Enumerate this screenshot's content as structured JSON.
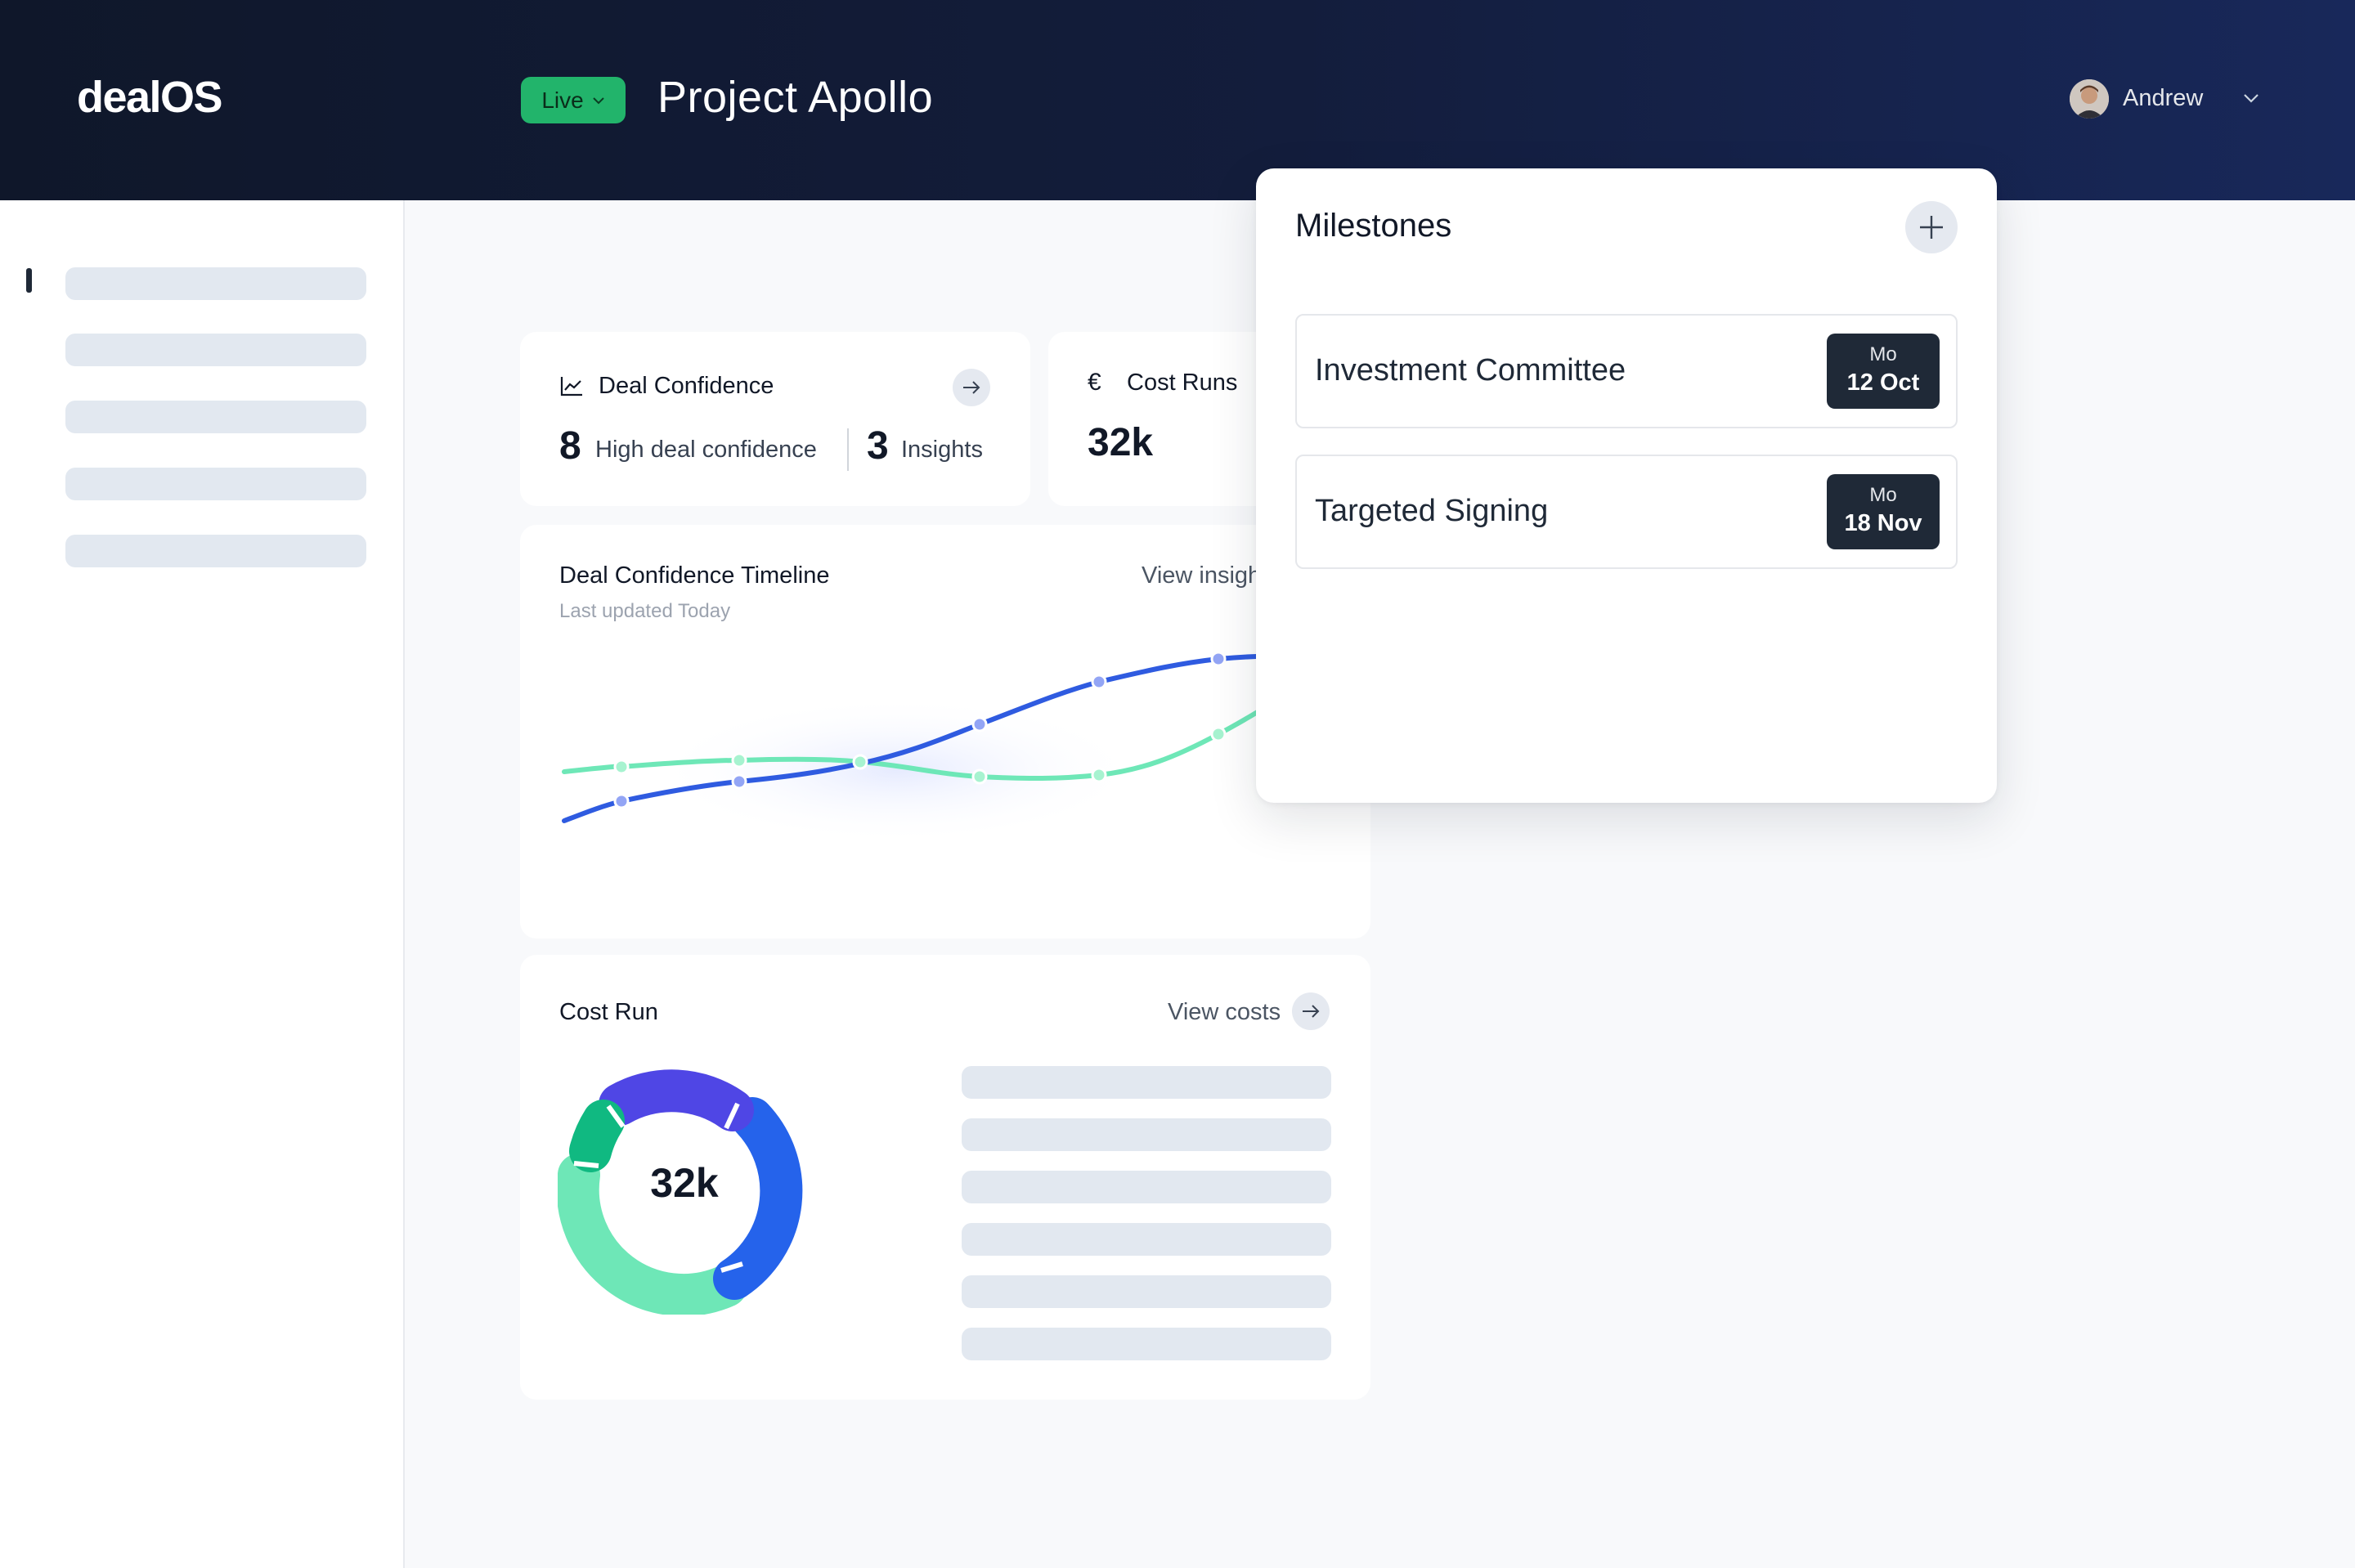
{
  "header": {
    "logo": "dealOS",
    "status_pill": "Live",
    "project_title": "Project Apollo",
    "user_name": "Andrew"
  },
  "deal_confidence": {
    "title": "Deal Confidence",
    "high_count": "8",
    "high_label": "High deal confidence",
    "insights_count": "3",
    "insights_label": "Insights"
  },
  "cost_runs": {
    "currency_symbol": "€",
    "title": "Cost Runs",
    "value": "32k"
  },
  "timeline": {
    "title": "Deal Confidence Timeline",
    "subtitle": "Last updated Today",
    "view_link": "View insights"
  },
  "cost_run": {
    "title": "Cost Run",
    "view_link": "View costs",
    "total": "32k"
  },
  "milestones": {
    "title": "Milestones",
    "items": [
      {
        "name": "Investment Committee",
        "day": "Mo",
        "date": "12 Oct"
      },
      {
        "name": "Targeted Signing",
        "day": "Mo",
        "date": "18 Nov"
      }
    ]
  },
  "colors": {
    "header_bg": "#0f172a",
    "live_green": "#22b46b",
    "series_blue": "#2f5be0",
    "series_green": "#6ee7b7",
    "donut_purple": "#4f46e5",
    "donut_blue": "#2563eb",
    "donut_green_dark": "#10b981",
    "donut_green_light": "#6ee7b7",
    "badge_dark": "#1f2937"
  },
  "icons": [
    "chart-line-icon",
    "arrow-right-icon",
    "euro-icon",
    "plus-icon",
    "chevron-down-icon",
    "avatar"
  ]
}
